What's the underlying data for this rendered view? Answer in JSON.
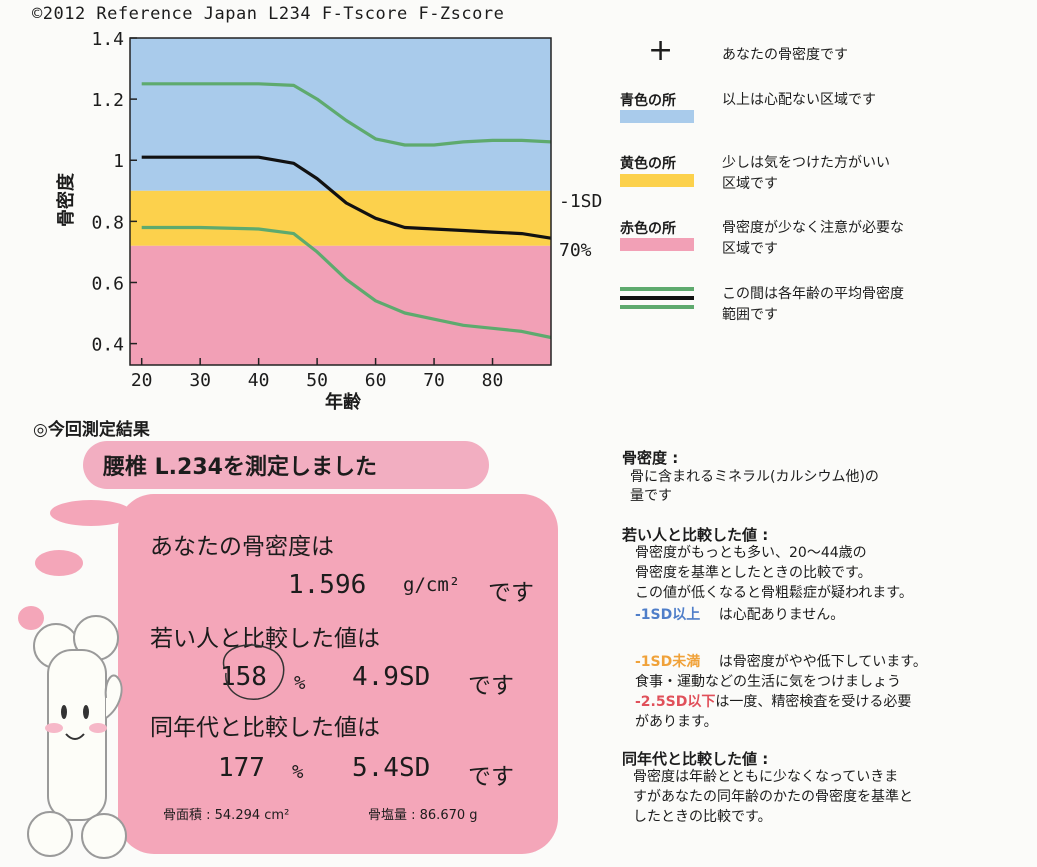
{
  "header": {
    "copyright": "©2012 Reference Japan L234 F-Tscore F-Zscore"
  },
  "chart_data": {
    "type": "line",
    "title": "",
    "xlabel": "年齢",
    "ylabel": "骨密度",
    "xlim": [
      18,
      90
    ],
    "ylim": [
      0.33,
      1.4
    ],
    "xticks": [
      "20",
      "30",
      "40",
      "50",
      "60",
      "70",
      "80"
    ],
    "yticks": [
      "0.4",
      "0.6",
      "0.8",
      "1",
      "1.2",
      "1.4"
    ],
    "bands": [
      {
        "name": "青色の所",
        "from": 0.9,
        "to": 1.4,
        "color": "#a9cbeb"
      },
      {
        "name": "黄色の所",
        "from": 0.72,
        "to": 0.9,
        "color": "#fcd14c"
      },
      {
        "name": "赤色の所",
        "from": 0.33,
        "to": 0.72,
        "color": "#f2a0b6"
      }
    ],
    "series": [
      {
        "color": "#5eaa6e",
        "x": [
          20,
          30,
          40,
          46,
          50,
          55,
          60,
          65,
          70,
          75,
          80,
          85,
          90
        ],
        "y": [
          1.25,
          1.25,
          1.25,
          1.245,
          1.2,
          1.13,
          1.07,
          1.05,
          1.05,
          1.06,
          1.065,
          1.065,
          1.06
        ]
      },
      {
        "color": "#111111",
        "x": [
          20,
          30,
          40,
          46,
          50,
          55,
          60,
          65,
          70,
          75,
          80,
          85,
          90
        ],
        "y": [
          1.01,
          1.01,
          1.01,
          0.99,
          0.94,
          0.86,
          0.81,
          0.78,
          0.775,
          0.77,
          0.765,
          0.76,
          0.745
        ]
      },
      {
        "color": "#5eaa6e",
        "x": [
          20,
          30,
          40,
          46,
          50,
          55,
          60,
          65,
          70,
          75,
          80,
          85,
          90
        ],
        "y": [
          0.78,
          0.78,
          0.775,
          0.76,
          0.7,
          0.61,
          0.54,
          0.5,
          0.48,
          0.46,
          0.45,
          0.44,
          0.42
        ]
      }
    ],
    "side_labels": [
      {
        "text": "-1SD",
        "y": 0.87
      },
      {
        "text": "70%",
        "y": 0.71
      }
    ]
  },
  "legend": {
    "plus_symbol": "+",
    "plus_desc": "あなたの骨密度です",
    "blue_label": "青色の所",
    "blue_desc": "以上は心配ない区域です",
    "blue_color": "#a9cbeb",
    "yellow_label": "黄色の所",
    "yellow_desc_1": "少しは気をつけた方がいい",
    "yellow_desc_2": "区域です",
    "yellow_color": "#fcd14c",
    "red_label": "赤色の所",
    "red_desc_1": "骨密度が少なく注意が必要な",
    "red_desc_2": "区域です",
    "red_color": "#f2a0b6",
    "lines_desc_1": "この間は各年齢の平均骨密度",
    "lines_desc_2": "範囲です"
  },
  "results": {
    "heading": "◎今回測定結果",
    "site": "腰椎 L.234を測定しました",
    "bmd_intro": "あなたの骨密度は",
    "bmd_value": "1.596",
    "bmd_unit": "g/cm²",
    "desu": "です",
    "young_intro": "若い人と比較した値は",
    "young_pct": "158",
    "pct_sign": "%",
    "young_sd": "4.9SD",
    "age_intro": "同年代と比較した値は",
    "age_pct": "177",
    "age_sd": "5.4SD",
    "area_label": "骨面積 : 54.294 cm²",
    "bmc_label": "骨塩量 : 86.670 g"
  },
  "notes": {
    "bmd_head": "骨密度 :",
    "bmd_body_1": "骨に含まれるミネラル(カルシウム他)の",
    "bmd_body_2": "量です",
    "young_head": "若い人と比較した値 :",
    "young_body_1": "骨密度がもっとも多い、20〜44歳の",
    "young_body_2": "骨密度を基準としたときの比較です。",
    "young_body_3": "この値が低くなると骨粗鬆症が疑われます。",
    "blue_tag": "-1SD以上",
    "blue_text": "は心配ありません。",
    "orange_tag": "-1SD未満",
    "orange_text": "は骨密度がやや低下しています。",
    "orange_body_2": "食事・運動などの生活に気をつけましょう",
    "red_tag": "-2.5SD以下",
    "red_text": "は一度、精密検査を受ける必要",
    "red_body_2": "があります。",
    "age_head": "同年代と比較した値 :",
    "age_body_1": "骨密度は年齢とともに少なくなっていきま",
    "age_body_2": "すがあなたの同年齢のかたの骨密度を基準と",
    "age_body_3": "したときの比較です。"
  }
}
